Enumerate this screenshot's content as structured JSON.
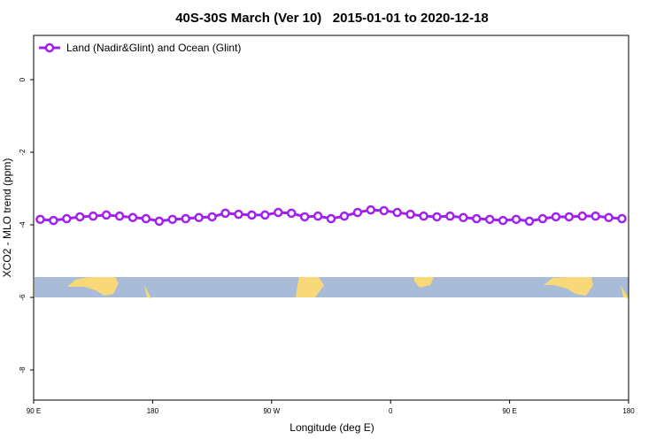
{
  "chart_data": {
    "type": "line",
    "title": "40S-30S March (Ver 10)   2015-01-01 to 2020-12-18",
    "xlabel": "Longitude (deg E)",
    "ylabel": "XCO2 - MLO trend (ppm)",
    "x": [
      95,
      105,
      115,
      125,
      135,
      145,
      155,
      165,
      175,
      185,
      195,
      205,
      215,
      225,
      235,
      245,
      255,
      265,
      275,
      285,
      295,
      305,
      315,
      325,
      335,
      345,
      355,
      365,
      375,
      385,
      395,
      405,
      415,
      425,
      435,
      445,
      455,
      465,
      475,
      485,
      495,
      505,
      515,
      525,
      535
    ],
    "series": [
      {
        "name": "Land (Nadir&Glint) and Ocean (Glint)",
        "color": "#a020f0",
        "values": [
          -3.85,
          -3.88,
          -3.83,
          -3.78,
          -3.76,
          -3.73,
          -3.76,
          -3.8,
          -3.83,
          -3.9,
          -3.85,
          -3.83,
          -3.8,
          -3.78,
          -3.68,
          -3.71,
          -3.73,
          -3.73,
          -3.66,
          -3.68,
          -3.78,
          -3.76,
          -3.83,
          -3.76,
          -3.66,
          -3.59,
          -3.61,
          -3.66,
          -3.71,
          -3.76,
          -3.78,
          -3.76,
          -3.8,
          -3.83,
          -3.85,
          -3.88,
          -3.85,
          -3.9,
          -3.83,
          -3.78,
          -3.78,
          -3.76,
          -3.76,
          -3.8,
          -3.83
        ]
      }
    ],
    "xlim": [
      90,
      540
    ],
    "xticks": [
      {
        "value": 90,
        "label": "90 E"
      },
      {
        "value": 180,
        "label": "180"
      },
      {
        "value": 270,
        "label": "90 W"
      },
      {
        "value": 360,
        "label": "0"
      },
      {
        "value": 450,
        "label": "90 E"
      },
      {
        "value": 540,
        "label": "180"
      }
    ],
    "ylim": [
      -8.83,
      1.22
    ],
    "yticks": [
      0,
      -2,
      -4,
      -6,
      -8
    ],
    "legend": "top-left"
  }
}
